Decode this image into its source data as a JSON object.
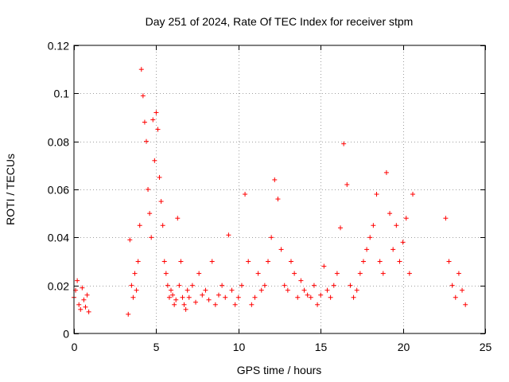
{
  "chart_data": {
    "type": "scatter",
    "title": "Day 251 of 2024, Rate Of TEC Index for receiver stpm",
    "xlabel": "GPS time / hours",
    "ylabel": "ROTI / TECUs",
    "xlim": [
      0,
      25
    ],
    "ylim": [
      0,
      0.12
    ],
    "xticks": [
      0,
      5,
      10,
      15,
      20,
      25
    ],
    "xtick_labels": [
      "0",
      "5",
      "10",
      "15",
      "20",
      "25"
    ],
    "yticks": [
      0,
      0.02,
      0.04,
      0.06,
      0.08,
      0.1,
      0.12
    ],
    "ytick_labels": [
      "0",
      "0.02",
      "0.04",
      "0.06",
      "0.08",
      "0.1",
      "0.12"
    ],
    "grid": true,
    "marker": "plus",
    "color": "#ff0000",
    "series": [
      {
        "name": "ROTI",
        "x": [
          0.0,
          0.1,
          0.2,
          0.3,
          0.4,
          0.5,
          0.6,
          0.7,
          0.8,
          0.9,
          3.3,
          3.4,
          3.5,
          3.6,
          3.7,
          3.8,
          3.9,
          4.0,
          4.1,
          4.2,
          4.3,
          4.4,
          4.5,
          4.6,
          4.7,
          4.8,
          4.9,
          5.0,
          5.1,
          5.2,
          5.3,
          5.4,
          5.5,
          5.6,
          5.7,
          5.8,
          5.9,
          6.0,
          6.1,
          6.2,
          6.3,
          6.4,
          6.5,
          6.6,
          6.7,
          6.8,
          6.9,
          7.0,
          7.2,
          7.4,
          7.6,
          7.8,
          8.0,
          8.2,
          8.4,
          8.6,
          8.8,
          9.0,
          9.2,
          9.4,
          9.6,
          9.8,
          10.0,
          10.2,
          10.4,
          10.6,
          10.8,
          11.0,
          11.2,
          11.4,
          11.6,
          11.8,
          12.0,
          12.2,
          12.4,
          12.6,
          12.8,
          13.0,
          13.2,
          13.4,
          13.6,
          13.8,
          14.0,
          14.2,
          14.4,
          14.6,
          14.8,
          15.0,
          15.2,
          15.4,
          15.6,
          15.8,
          16.0,
          16.2,
          16.4,
          16.6,
          16.8,
          17.0,
          17.2,
          17.4,
          17.6,
          17.8,
          18.0,
          18.2,
          18.4,
          18.6,
          18.8,
          19.0,
          19.2,
          19.4,
          19.6,
          19.8,
          20.0,
          20.2,
          20.4,
          20.6,
          22.6,
          22.8,
          23.0,
          23.2,
          23.4,
          23.6,
          23.8
        ],
        "y": [
          0.015,
          0.018,
          0.022,
          0.012,
          0.01,
          0.019,
          0.014,
          0.011,
          0.016,
          0.009,
          0.008,
          0.039,
          0.02,
          0.015,
          0.025,
          0.018,
          0.03,
          0.045,
          0.11,
          0.099,
          0.088,
          0.08,
          0.06,
          0.05,
          0.04,
          0.089,
          0.072,
          0.092,
          0.085,
          0.065,
          0.055,
          0.045,
          0.03,
          0.025,
          0.02,
          0.015,
          0.018,
          0.016,
          0.012,
          0.014,
          0.048,
          0.02,
          0.03,
          0.015,
          0.012,
          0.01,
          0.018,
          0.015,
          0.02,
          0.013,
          0.025,
          0.016,
          0.018,
          0.014,
          0.03,
          0.012,
          0.016,
          0.02,
          0.015,
          0.041,
          0.018,
          0.012,
          0.015,
          0.02,
          0.058,
          0.03,
          0.012,
          0.015,
          0.025,
          0.018,
          0.02,
          0.03,
          0.04,
          0.064,
          0.056,
          0.035,
          0.02,
          0.018,
          0.03,
          0.025,
          0.015,
          0.022,
          0.018,
          0.016,
          0.015,
          0.02,
          0.012,
          0.016,
          0.028,
          0.018,
          0.015,
          0.02,
          0.025,
          0.044,
          0.079,
          0.062,
          0.02,
          0.015,
          0.018,
          0.025,
          0.03,
          0.035,
          0.04,
          0.045,
          0.058,
          0.03,
          0.025,
          0.067,
          0.05,
          0.035,
          0.045,
          0.03,
          0.038,
          0.048,
          0.025,
          0.058,
          0.048,
          0.03,
          0.02,
          0.015,
          0.025,
          0.018,
          0.012
        ]
      }
    ]
  }
}
